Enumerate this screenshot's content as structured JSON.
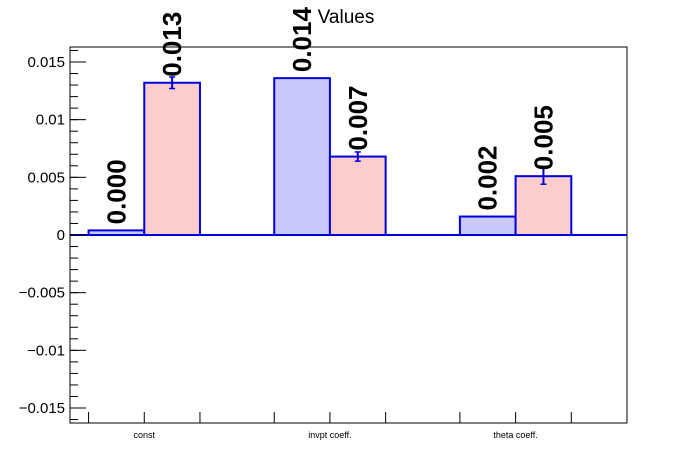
{
  "chart_data": {
    "type": "bar",
    "title": "Values",
    "xlabel": "",
    "ylabel": "",
    "categories": [
      "const",
      "invpt coeff.",
      "theta coeff."
    ],
    "ylim": [
      -0.0163,
      0.0163
    ],
    "yticks": [
      {
        "value": 0.015,
        "label": "0.015"
      },
      {
        "value": 0.01,
        "label": "0.01"
      },
      {
        "value": 0.005,
        "label": "0.005"
      },
      {
        "value": 0,
        "label": "0"
      },
      {
        "value": -0.005,
        "label": "−0.005"
      },
      {
        "value": -0.01,
        "label": "−0.01"
      },
      {
        "value": -0.015,
        "label": "−0.015"
      }
    ],
    "series": [
      {
        "values": [
          0.0004,
          0.0136,
          0.0016
        ],
        "labels": [
          "0.000",
          "0.014",
          "0.002"
        ],
        "errors": [
          0,
          0,
          0
        ],
        "fill": "#c8c8fa"
      },
      {
        "values": [
          0.0132,
          0.0068,
          0.0051
        ],
        "labels": [
          "0.013",
          "0.007",
          "0.005"
        ],
        "errors": [
          0.0005,
          0.0004,
          0.0007
        ],
        "fill": "#fdcccc"
      }
    ],
    "line_color": "#0000dd",
    "grid": false,
    "legend": "none"
  }
}
